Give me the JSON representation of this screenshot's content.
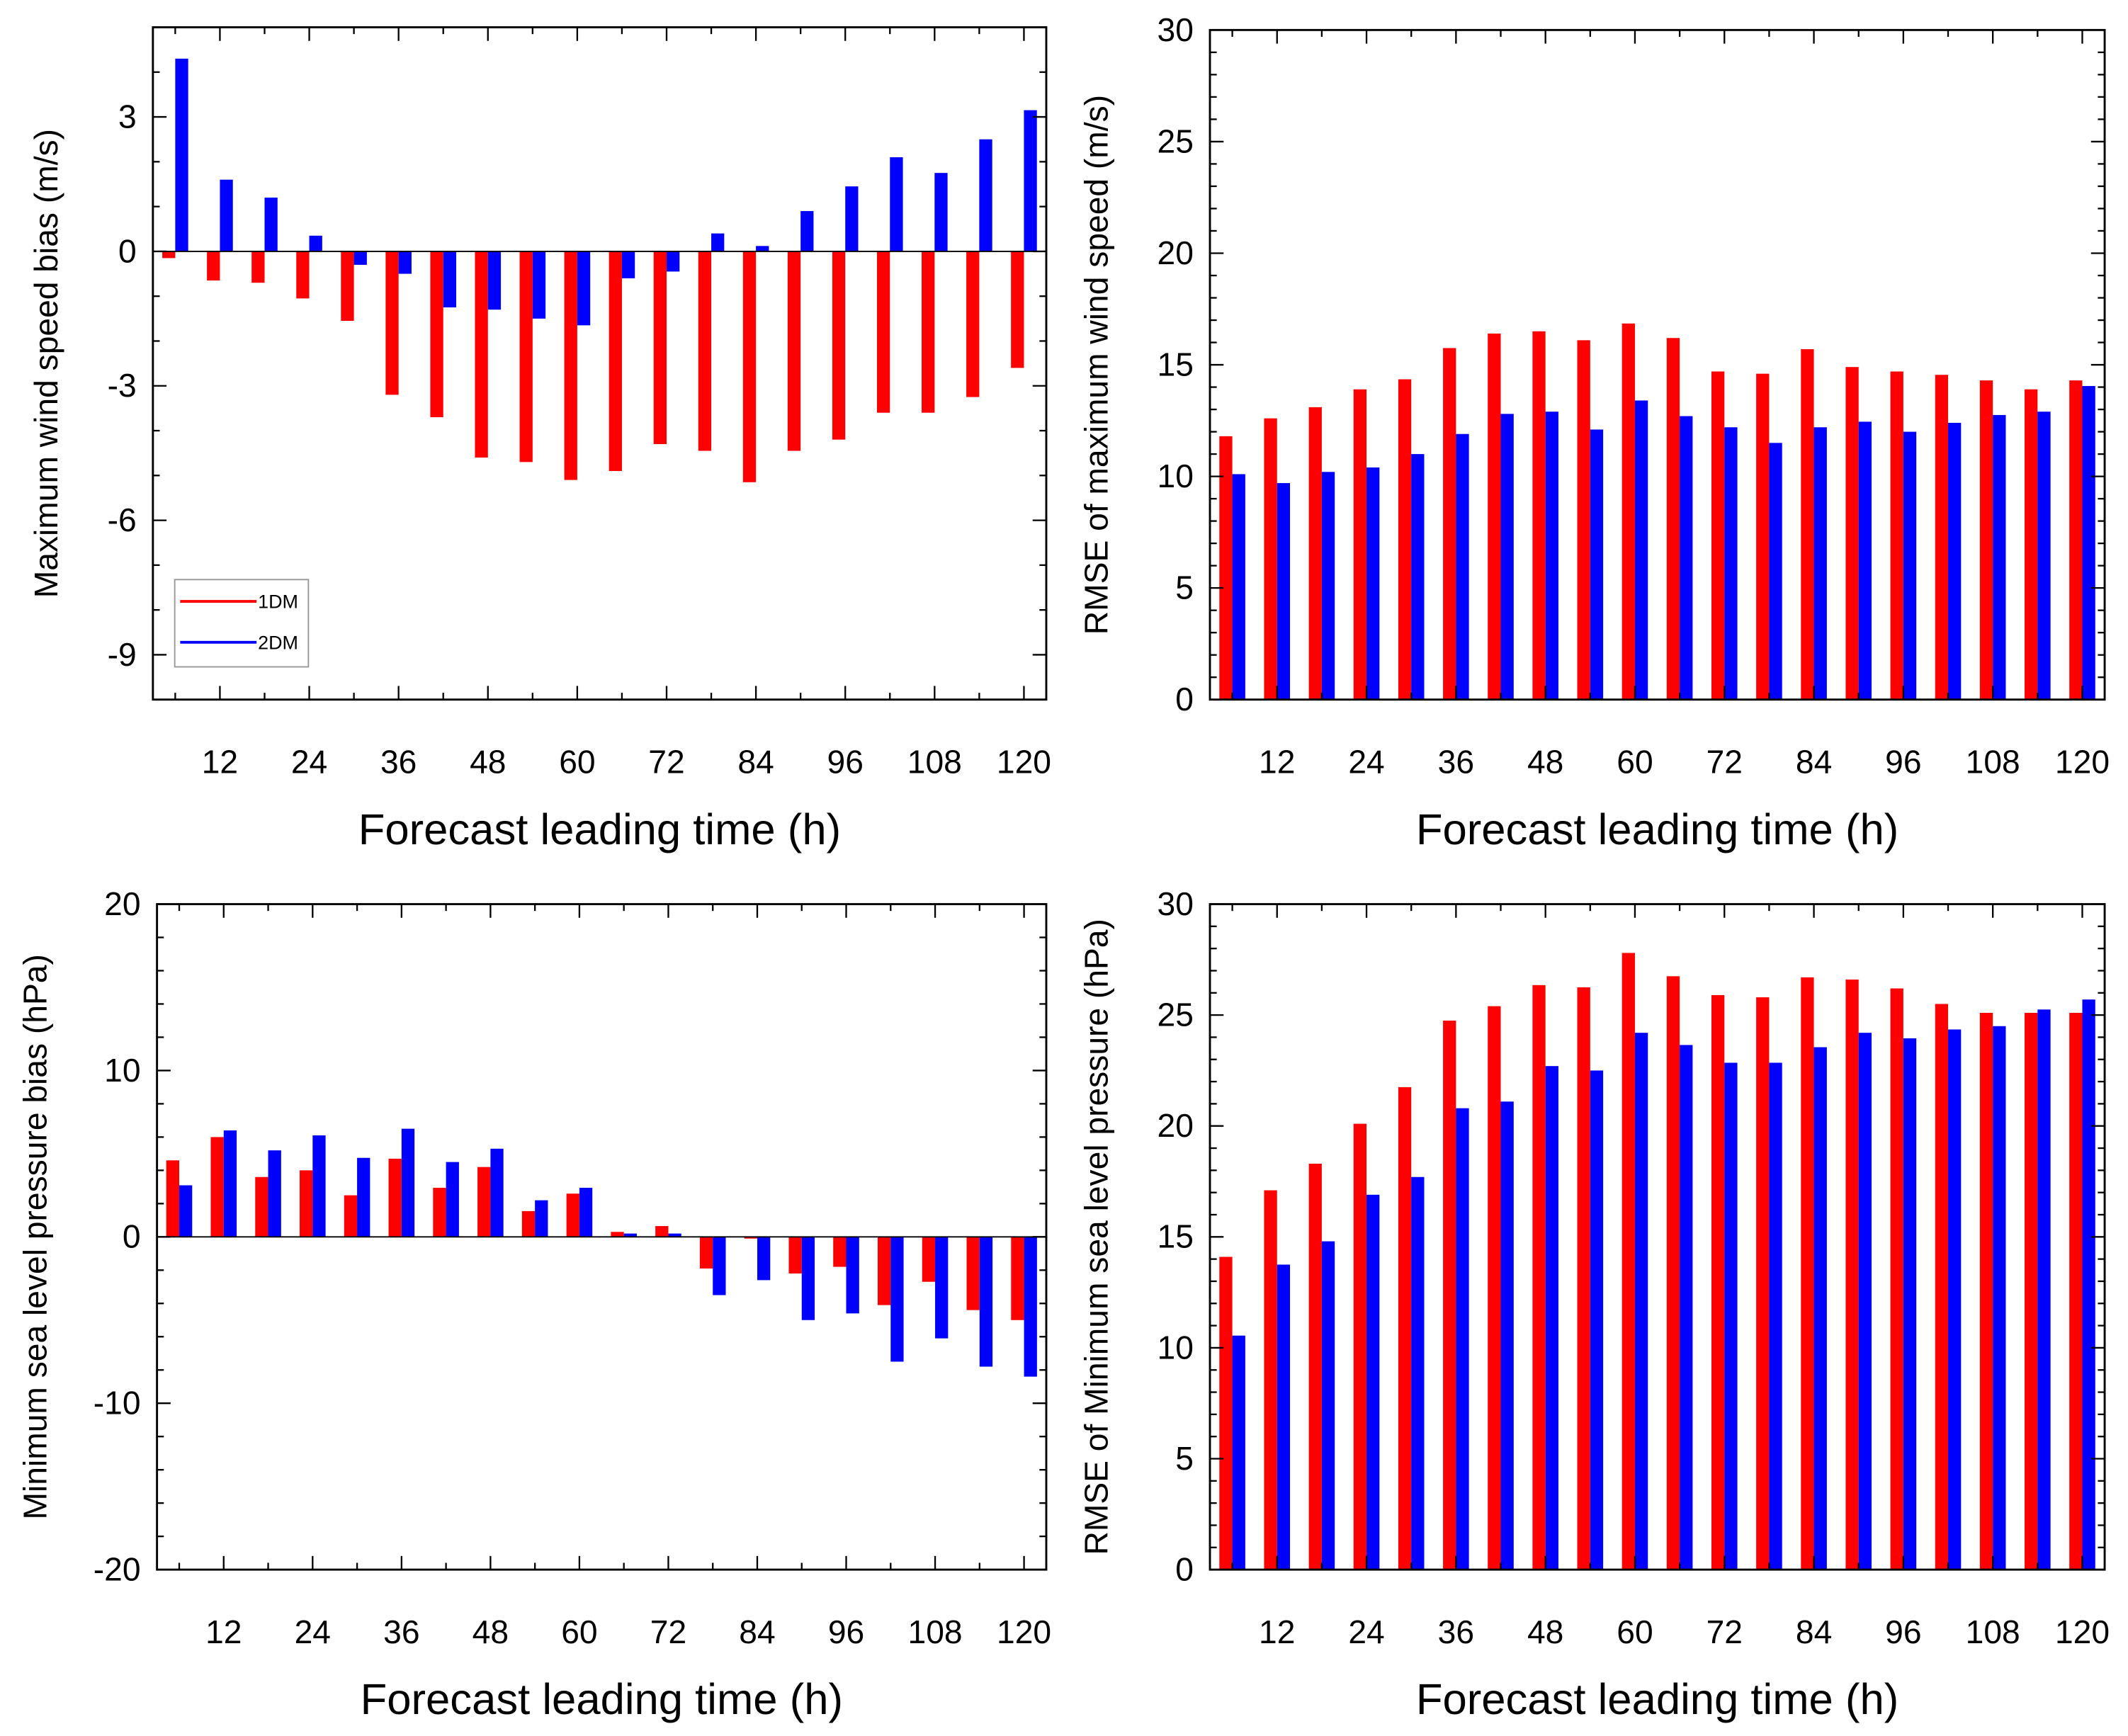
{
  "colors": {
    "series1": "#ff0000",
    "series2": "#0000ff",
    "axis": "#000000"
  },
  "chart_data": [
    {
      "type": "bar",
      "xlabel": "Forecast leading time (h)",
      "ylabel": "Maximum wind speed bias (m/s)",
      "x": [
        6,
        12,
        18,
        24,
        30,
        36,
        42,
        48,
        54,
        60,
        66,
        72,
        78,
        84,
        90,
        96,
        102,
        108,
        114,
        120
      ],
      "xticks": [
        12,
        24,
        36,
        48,
        60,
        72,
        84,
        96,
        108,
        120
      ],
      "xlim": [
        3,
        123
      ],
      "ylim": [
        -10,
        5
      ],
      "yticks": [
        -9,
        -6,
        -3,
        0,
        3
      ],
      "yminor": 1,
      "legend": {
        "placement": "bottom-left",
        "entries": [
          "1DM",
          "2DM"
        ]
      },
      "series": [
        {
          "name": "1DM",
          "values": [
            -0.15,
            -0.65,
            -0.7,
            -1.05,
            -1.55,
            -3.2,
            -3.7,
            -4.6,
            -4.7,
            -5.1,
            -4.9,
            -4.3,
            -4.45,
            -5.15,
            -4.45,
            -4.2,
            -3.6,
            -3.6,
            -3.25,
            -2.6
          ]
        },
        {
          "name": "2DM",
          "values": [
            4.3,
            1.6,
            1.2,
            0.35,
            -0.3,
            -0.5,
            -1.25,
            -1.3,
            -1.5,
            -1.65,
            -0.6,
            -0.45,
            0.4,
            0.12,
            0.9,
            1.45,
            2.1,
            1.75,
            2.5,
            3.15
          ]
        }
      ]
    },
    {
      "type": "bar",
      "xlabel": "Forecast leading time (h)",
      "ylabel": "RMSE of maximum wind speed (m/s)",
      "x": [
        6,
        12,
        18,
        24,
        30,
        36,
        42,
        48,
        54,
        60,
        66,
        72,
        78,
        84,
        90,
        96,
        102,
        108,
        114,
        120
      ],
      "xticks": [
        12,
        24,
        36,
        48,
        60,
        72,
        84,
        96,
        108,
        120
      ],
      "xlim": [
        3,
        123
      ],
      "ylim": [
        0,
        30
      ],
      "yticks": [
        0,
        5,
        10,
        15,
        20,
        25,
        30
      ],
      "yminor": 1,
      "series": [
        {
          "name": "1DM",
          "values": [
            11.8,
            12.6,
            13.1,
            13.9,
            14.35,
            15.75,
            16.4,
            16.5,
            16.1,
            16.85,
            16.2,
            14.7,
            14.6,
            15.7,
            14.9,
            14.7,
            14.55,
            14.3,
            13.9,
            14.3
          ]
        },
        {
          "name": "2DM",
          "values": [
            10.1,
            9.7,
            10.2,
            10.4,
            11.0,
            11.9,
            12.8,
            12.9,
            12.1,
            13.4,
            12.7,
            12.2,
            11.5,
            12.2,
            12.45,
            12.0,
            12.4,
            12.75,
            12.9,
            14.05
          ]
        }
      ]
    },
    {
      "type": "bar",
      "xlabel": "Forecast leading time (h)",
      "ylabel": "Minimum sea level pressure bias (hPa)",
      "x": [
        6,
        12,
        18,
        24,
        30,
        36,
        42,
        48,
        54,
        60,
        66,
        72,
        78,
        84,
        90,
        96,
        102,
        108,
        114,
        120
      ],
      "xticks": [
        12,
        24,
        36,
        48,
        60,
        72,
        84,
        96,
        108,
        120
      ],
      "xlim": [
        3,
        123
      ],
      "ylim": [
        -20,
        20
      ],
      "yticks": [
        -20,
        -10,
        0,
        10,
        20
      ],
      "yminor": 2,
      "series": [
        {
          "name": "1DM",
          "values": [
            4.6,
            6.0,
            3.6,
            4.0,
            2.5,
            4.7,
            2.95,
            4.2,
            1.55,
            2.6,
            0.3,
            0.65,
            -1.9,
            -0.1,
            -2.2,
            -1.8,
            -4.1,
            -2.7,
            -4.4,
            -5.0
          ]
        },
        {
          "name": "2DM",
          "values": [
            3.1,
            6.4,
            5.2,
            6.1,
            4.75,
            6.5,
            4.5,
            5.3,
            2.2,
            2.95,
            0.2,
            0.2,
            -3.5,
            -2.6,
            -5.0,
            -4.6,
            -7.5,
            -6.1,
            -7.8,
            -8.4
          ]
        }
      ]
    },
    {
      "type": "bar",
      "xlabel": "Forecast leading time (h)",
      "ylabel": "RMSE of Minimum sea level pressure (hPa)",
      "x": [
        6,
        12,
        18,
        24,
        30,
        36,
        42,
        48,
        54,
        60,
        66,
        72,
        78,
        84,
        90,
        96,
        102,
        108,
        114,
        120
      ],
      "xticks": [
        12,
        24,
        36,
        48,
        60,
        72,
        84,
        96,
        108,
        120
      ],
      "xlim": [
        3,
        123
      ],
      "ylim": [
        0,
        30
      ],
      "yticks": [
        0,
        5,
        10,
        15,
        20,
        25,
        30
      ],
      "yminor": 1,
      "series": [
        {
          "name": "1DM",
          "values": [
            14.1,
            17.1,
            18.3,
            20.1,
            21.75,
            24.75,
            25.4,
            26.35,
            26.25,
            27.8,
            26.75,
            25.9,
            25.8,
            26.7,
            26.6,
            26.2,
            25.5,
            25.1,
            25.1,
            25.1
          ]
        },
        {
          "name": "2DM",
          "values": [
            10.55,
            13.75,
            14.8,
            16.9,
            17.7,
            20.8,
            21.1,
            22.7,
            22.5,
            24.2,
            23.65,
            22.85,
            22.85,
            23.55,
            24.2,
            23.95,
            24.35,
            24.5,
            25.25,
            25.7
          ]
        }
      ]
    }
  ]
}
